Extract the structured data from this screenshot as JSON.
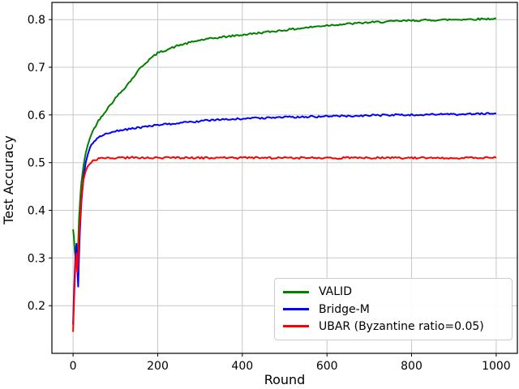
{
  "chart_data": {
    "type": "line",
    "title": "",
    "xlabel": "Round",
    "ylabel": "Test Accuracy",
    "xlim": [
      -50,
      1050
    ],
    "ylim": [
      0.1,
      0.836
    ],
    "xticks": [
      0,
      200,
      400,
      600,
      800,
      1000
    ],
    "yticks": [
      0.2,
      0.3,
      0.4,
      0.5,
      0.6,
      0.7,
      0.8
    ],
    "grid": true,
    "grid_color": "#c8c8c8",
    "axis_color": "#000000",
    "background": "#ffffff",
    "legend_position": "lower right",
    "x": [
      0,
      2,
      4,
      6,
      8,
      10,
      12,
      14,
      16,
      18,
      20,
      25,
      30,
      35,
      40,
      50,
      60,
      70,
      80,
      100,
      120,
      140,
      160,
      180,
      200,
      250,
      300,
      350,
      400,
      450,
      500,
      550,
      600,
      650,
      700,
      750,
      800,
      850,
      900,
      950,
      1000
    ],
    "series": [
      {
        "name": "VALID",
        "color": "#008000",
        "y": [
          0.36,
          0.345,
          0.315,
          0.3,
          0.295,
          0.29,
          0.33,
          0.38,
          0.41,
          0.44,
          0.46,
          0.495,
          0.52,
          0.538,
          0.553,
          0.572,
          0.588,
          0.6,
          0.612,
          0.635,
          0.655,
          0.676,
          0.7,
          0.716,
          0.73,
          0.746,
          0.757,
          0.763,
          0.768,
          0.773,
          0.778,
          0.783,
          0.788,
          0.791,
          0.794,
          0.796,
          0.798,
          0.799,
          0.8,
          0.801,
          0.802
        ]
      },
      {
        "name": "Bridge-M",
        "color": "#0000ff",
        "y": [
          0.16,
          0.22,
          0.27,
          0.31,
          0.33,
          0.28,
          0.24,
          0.3,
          0.35,
          0.39,
          0.42,
          0.47,
          0.5,
          0.518,
          0.532,
          0.545,
          0.552,
          0.557,
          0.561,
          0.566,
          0.569,
          0.572,
          0.574,
          0.576,
          0.579,
          0.583,
          0.587,
          0.59,
          0.592,
          0.594,
          0.595,
          0.596,
          0.597,
          0.598,
          0.599,
          0.6,
          0.6,
          0.601,
          0.601,
          0.602,
          0.603
        ]
      },
      {
        "name": "UBAR (Byzantine ratio=0.05)",
        "color": "#ff0000",
        "y": [
          0.145,
          0.2,
          0.25,
          0.29,
          0.31,
          0.27,
          0.3,
          0.34,
          0.37,
          0.4,
          0.43,
          0.465,
          0.483,
          0.493,
          0.499,
          0.505,
          0.508,
          0.509,
          0.51,
          0.51,
          0.51,
          0.511,
          0.51,
          0.51,
          0.51,
          0.51,
          0.51,
          0.51,
          0.51,
          0.51,
          0.51,
          0.51,
          0.51,
          0.51,
          0.51,
          0.51,
          0.51,
          0.51,
          0.51,
          0.51,
          0.51
        ]
      }
    ]
  }
}
